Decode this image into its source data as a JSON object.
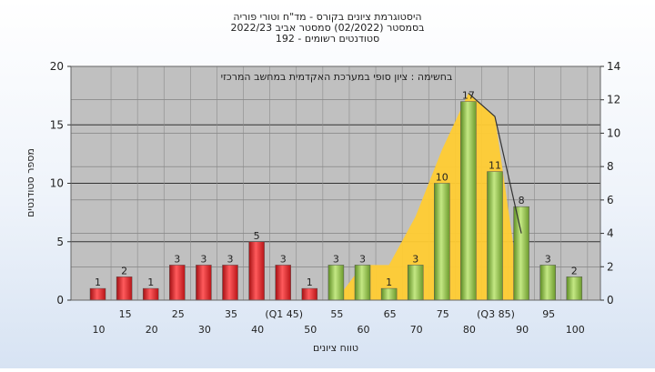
{
  "chart_data": {
    "type": "bar",
    "title_lines": [
      "היסטוגרמת ציונים בקורס - מד\"ח וטורי פוריה",
      "בסמסטר  (02/2022)  סמסטר אביב 2022/23",
      "סטודנטים רשומים - 192"
    ],
    "subtitle": "בחשימה : ציון סופי במערכת האקדמית במחשב המרכזי",
    "xlabel": "טווח ציונים",
    "ylabel": "מספר סטודנטים",
    "ylim": [
      0,
      20
    ],
    "y_ticks": [
      0,
      5,
      10,
      15,
      20
    ],
    "y2lim": [
      0,
      14
    ],
    "y2_ticks": [
      0,
      2,
      4,
      6,
      8,
      10,
      12,
      14
    ],
    "grid": true,
    "categories": [
      "10",
      "15",
      "20",
      "25",
      "30",
      "35",
      "40",
      "(Q1 45)",
      "50",
      "55",
      "60",
      "65",
      "70",
      "75",
      "80",
      "(Q3 85)",
      "90",
      "95",
      "100"
    ],
    "values": [
      1,
      2,
      1,
      3,
      3,
      3,
      5,
      3,
      1,
      3,
      3,
      1,
      3,
      10,
      17,
      11,
      8,
      3,
      2
    ],
    "bar_colors": [
      "#e8282b",
      "#e8282b",
      "#e8282b",
      "#e8282b",
      "#e8282b",
      "#e8282b",
      "#e8282b",
      "#e8282b",
      "#e8282b",
      "#8cc63f",
      "#8cc63f",
      "#8cc63f",
      "#8cc63f",
      "#8cc63f",
      "#8cc63f",
      "#8cc63f",
      "#8cc63f",
      "#8cc63f",
      "#8cc63f"
    ],
    "area_color": "#ffcc33",
    "area_values": [
      0,
      0,
      0,
      0,
      0,
      0,
      0,
      0,
      0,
      0,
      2.1,
      2.1,
      5,
      9,
      12.4,
      11,
      0,
      0,
      0
    ],
    "curve_values": [
      null,
      null,
      null,
      null,
      null,
      null,
      null,
      null,
      null,
      null,
      null,
      null,
      null,
      null,
      12.4,
      11,
      4,
      null,
      null
    ]
  }
}
